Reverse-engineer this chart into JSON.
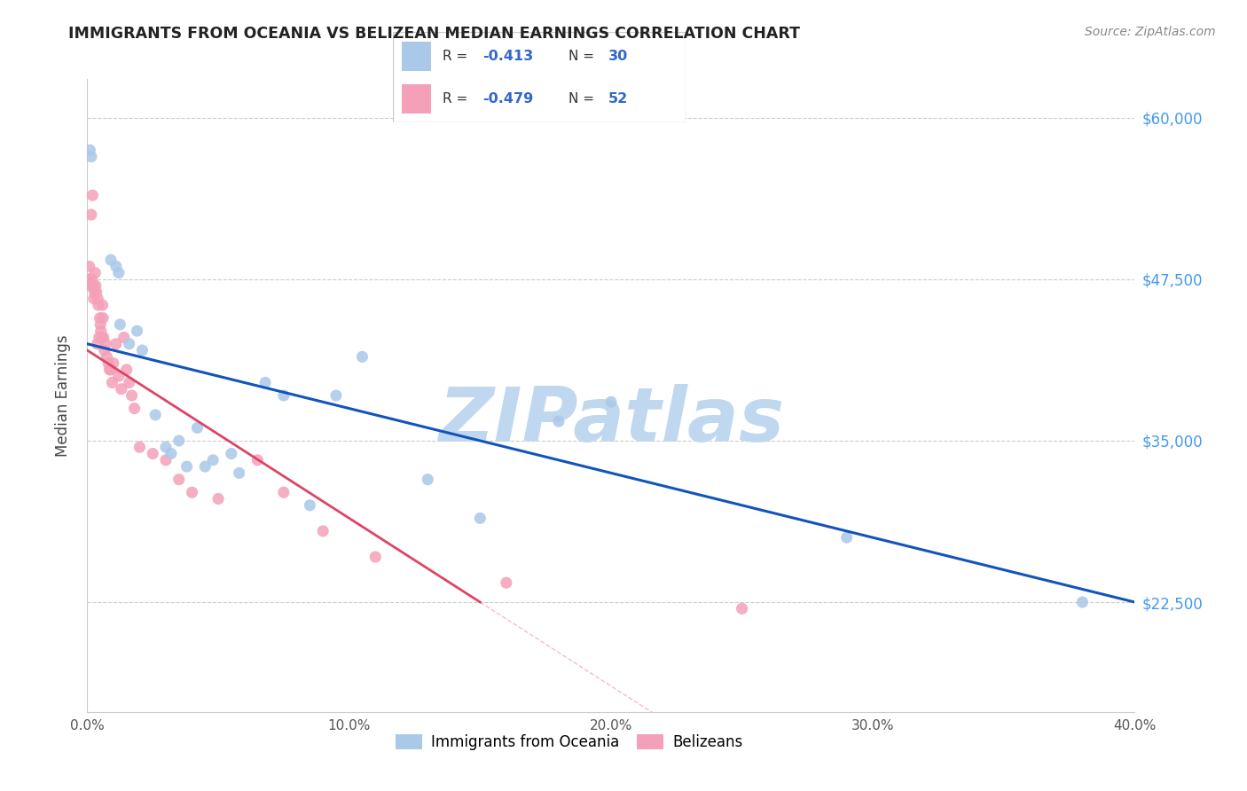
{
  "title": "IMMIGRANTS FROM OCEANIA VS BELIZEAN MEDIAN EARNINGS CORRELATION CHART",
  "source": "Source: ZipAtlas.com",
  "ylabel": "Median Earnings",
  "y_ticks": [
    22500,
    35000,
    47500,
    60000
  ],
  "y_tick_labels": [
    "$22,500",
    "$35,000",
    "$47,500",
    "$60,000"
  ],
  "x_min": 0.0,
  "x_max": 40.0,
  "y_min": 14000,
  "y_max": 63000,
  "blue_R": -0.413,
  "blue_N": 30,
  "pink_R": -0.479,
  "pink_N": 52,
  "legend1_label": "Immigrants from Oceania",
  "legend2_label": "Belizeans",
  "blue_color": "#aac8e8",
  "pink_color": "#f4a0b8",
  "blue_line_color": "#1155bb",
  "pink_line_color": "#dd4466",
  "watermark": "ZIPatlas",
  "watermark_color": "#c0d8ef",
  "blue_line_x0": 0.0,
  "blue_line_y0": 42500,
  "blue_line_x1": 40.0,
  "blue_line_y1": 22500,
  "pink_line_x0": 0.0,
  "pink_line_y0": 42000,
  "pink_line_x1": 15.0,
  "pink_line_y1": 22500,
  "pink_dash_x0": 15.0,
  "pink_dash_x1": 28.0,
  "blue_scatter_x": [
    0.1,
    0.15,
    0.9,
    1.1,
    1.2,
    1.25,
    1.9,
    2.1,
    3.0,
    3.5,
    4.2,
    4.8,
    5.5,
    6.8,
    7.5,
    9.5,
    10.5,
    15.0,
    18.0,
    20.0,
    29.0,
    38.0,
    1.6,
    2.6,
    3.2,
    3.8,
    4.5,
    5.8,
    8.5,
    13.0
  ],
  "blue_scatter_y": [
    57500,
    57000,
    49000,
    48500,
    48000,
    44000,
    43500,
    42000,
    34500,
    35000,
    36000,
    33500,
    34000,
    39500,
    38500,
    38500,
    41500,
    29000,
    36500,
    38000,
    27500,
    22500,
    42500,
    37000,
    34000,
    33000,
    33000,
    32500,
    30000,
    32000
  ],
  "pink_scatter_x": [
    0.05,
    0.08,
    0.1,
    0.12,
    0.15,
    0.18,
    0.2,
    0.22,
    0.25,
    0.28,
    0.3,
    0.32,
    0.35,
    0.38,
    0.4,
    0.42,
    0.45,
    0.48,
    0.5,
    0.52,
    0.55,
    0.58,
    0.6,
    0.62,
    0.65,
    0.7,
    0.75,
    0.8,
    0.85,
    0.9,
    0.95,
    1.0,
    1.1,
    1.2,
    1.3,
    1.4,
    1.5,
    1.6,
    1.7,
    1.8,
    2.0,
    2.5,
    3.0,
    3.5,
    4.0,
    5.0,
    6.5,
    7.5,
    9.0,
    11.0,
    16.0,
    25.0
  ],
  "pink_scatter_y": [
    47500,
    48500,
    47000,
    47500,
    52500,
    47500,
    54000,
    47000,
    46000,
    46500,
    48000,
    47000,
    46500,
    42500,
    46000,
    45500,
    43000,
    44500,
    44000,
    43500,
    43000,
    45500,
    44500,
    43000,
    42000,
    42500,
    41500,
    41000,
    40500,
    40500,
    39500,
    41000,
    42500,
    40000,
    39000,
    43000,
    40500,
    39500,
    38500,
    37500,
    34500,
    34000,
    33500,
    32000,
    31000,
    30500,
    33500,
    31000,
    28000,
    26000,
    24000,
    22000
  ]
}
